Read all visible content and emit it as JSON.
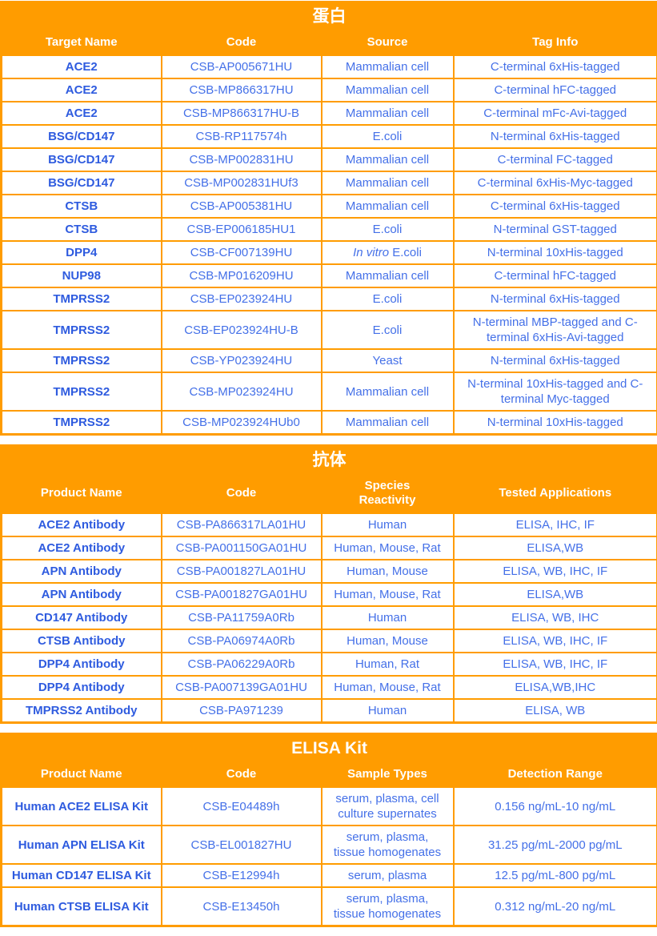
{
  "theme": {
    "orange": "#FF9C00",
    "header_text_color": "#FFFFFF",
    "cell_text_color": "#4470E8",
    "product_name_text_color": "#2E5BDF"
  },
  "tables": [
    {
      "title": "蛋白",
      "columns": [
        "Target Name",
        "Code",
        "Source",
        "Tag Info"
      ],
      "rows": [
        [
          "ACE2",
          "CSB-AP005671HU",
          "Mammalian cell",
          "C-terminal 6xHis-tagged"
        ],
        [
          "ACE2",
          "CSB-MP866317HU",
          "Mammalian cell",
          "C-terminal hFC-tagged"
        ],
        [
          "ACE2",
          "CSB-MP866317HU-B",
          "Mammalian cell",
          "C-terminal mFc-Avi-tagged"
        ],
        [
          "BSG/CD147",
          "CSB-RP117574h",
          "E.coli",
          "N-terminal 6xHis-tagged"
        ],
        [
          "BSG/CD147",
          "CSB-MP002831HU",
          "Mammalian cell",
          "C-terminal FC-tagged"
        ],
        [
          "BSG/CD147",
          "CSB-MP002831HUf3",
          "Mammalian cell",
          "C-terminal 6xHis-Myc-tagged"
        ],
        [
          "CTSB",
          "CSB-AP005381HU",
          "Mammalian cell",
          "C-terminal 6xHis-tagged"
        ],
        [
          "CTSB",
          "CSB-EP006185HU1",
          "E.coli",
          "N-terminal GST-tagged"
        ],
        [
          "DPP4",
          "CSB-CF007139HU",
          "In vitro E.coli",
          "N-terminal 10xHis-tagged"
        ],
        [
          "NUP98",
          "CSB-MP016209HU",
          "Mammalian cell",
          "C-terminal hFC-tagged"
        ],
        [
          "TMPRSS2",
          "CSB-EP023924HU",
          "E.coli",
          "N-terminal 6xHis-tagged"
        ],
        [
          "TMPRSS2",
          "CSB-EP023924HU-B",
          "E.coli",
          "N-terminal MBP-tagged and C-\nterminal 6xHis-Avi-tagged"
        ],
        [
          "TMPRSS2",
          "CSB-YP023924HU",
          "Yeast",
          "N-terminal 6xHis-tagged"
        ],
        [
          "TMPRSS2",
          "CSB-MP023924HU",
          "Mammalian cell",
          "N-terminal 10xHis-tagged and C-\nterminal Myc-tagged"
        ],
        [
          "TMPRSS2",
          "CSB-MP023924HUb0",
          "Mammalian cell",
          "N-terminal 10xHis-tagged"
        ]
      ],
      "italic_cells": [
        {
          "row": 8,
          "col": 2,
          "italic_text": "In vitro"
        }
      ]
    },
    {
      "title": "抗体",
      "columns": [
        "Product Name",
        "Code",
        "Species\nReactivity",
        "Tested Applications"
      ],
      "rows": [
        [
          "ACE2 Antibody",
          "CSB-PA866317LA01HU",
          "Human",
          "ELISA, IHC, IF"
        ],
        [
          "ACE2 Antibody",
          "CSB-PA001150GA01HU",
          "Human, Mouse, Rat",
          "ELISA,WB"
        ],
        [
          "APN Antibody",
          "CSB-PA001827LA01HU",
          "Human, Mouse",
          "ELISA, WB, IHC, IF"
        ],
        [
          "APN Antibody",
          "CSB-PA001827GA01HU",
          "Human, Mouse, Rat",
          "ELISA,WB"
        ],
        [
          "CD147 Antibody",
          "CSB-PA11759A0Rb",
          "Human",
          "ELISA, WB, IHC"
        ],
        [
          "CTSB Antibody",
          "CSB-PA06974A0Rb",
          "Human, Mouse",
          "ELISA, WB, IHC, IF"
        ],
        [
          "DPP4 Antibody",
          "CSB-PA06229A0Rb",
          "Human, Rat",
          "ELISA, WB, IHC, IF"
        ],
        [
          "DPP4 Antibody",
          "CSB-PA007139GA01HU",
          "Human, Mouse, Rat",
          "ELISA,WB,IHC"
        ],
        [
          "TMPRSS2 Antibody",
          "CSB-PA971239",
          "Human",
          "ELISA, WB"
        ]
      ],
      "italic_cells": []
    },
    {
      "title": "ELISA Kit",
      "columns": [
        "Product Name",
        "Code",
        "Sample Types",
        "Detection Range"
      ],
      "rows": [
        [
          "Human ACE2 ELISA Kit",
          "CSB-E04489h",
          "serum, plasma, cell\nculture supernates",
          "0.156 ng/mL-10 ng/mL"
        ],
        [
          "Human APN ELISA Kit",
          "CSB-EL001827HU",
          "serum, plasma,\ntissue homogenates",
          "31.25 pg/mL-2000 pg/mL"
        ],
        [
          "Human CD147 ELISA Kit",
          "CSB-E12994h",
          "serum, plasma",
          "12.5 pg/mL-800 pg/mL"
        ],
        [
          "Human CTSB ELISA Kit",
          "CSB-E13450h",
          "serum, plasma,\ntissue homogenates",
          "0.312 ng/mL-20 ng/mL"
        ]
      ],
      "italic_cells": []
    }
  ]
}
